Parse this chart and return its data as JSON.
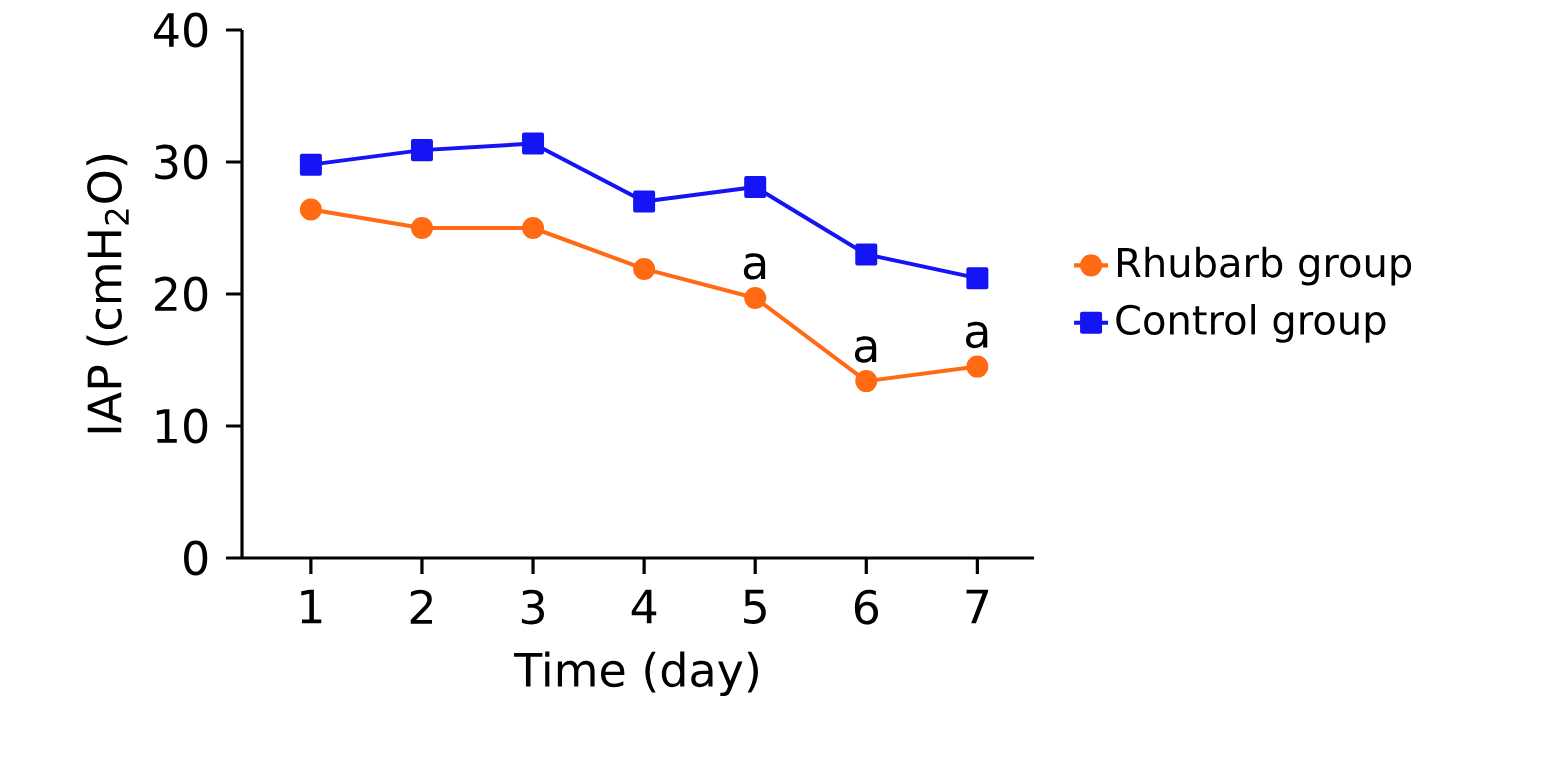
{
  "chart_data": {
    "type": "line",
    "xlabel": "Time (day)",
    "ylabel": "IAP (cmH$_{2}$O)",
    "categories": [
      "1",
      "2",
      "3",
      "4",
      "5",
      "6",
      "7"
    ],
    "series": [
      {
        "name": "Rhubarb group",
        "color": "#ff6a13",
        "marker": "circle",
        "values": [
          26.4,
          25.0,
          25.0,
          21.9,
          19.7,
          13.4,
          14.5
        ]
      },
      {
        "name": "Control group",
        "color": "#1414f5",
        "marker": "square",
        "values": [
          29.8,
          30.9,
          31.4,
          27.0,
          28.1,
          23.0,
          21.2
        ]
      }
    ],
    "annotations": [
      {
        "text": "a",
        "x": "5",
        "y": 19.7
      },
      {
        "text": "a",
        "x": "6",
        "y": 13.4
      },
      {
        "text": "a",
        "x": "7",
        "y": 14.5
      }
    ],
    "ylim": [
      0,
      40
    ],
    "yticks": [
      0,
      10,
      20,
      30,
      40
    ],
    "grid": false,
    "legend": "right",
    "line_style": "solid"
  }
}
